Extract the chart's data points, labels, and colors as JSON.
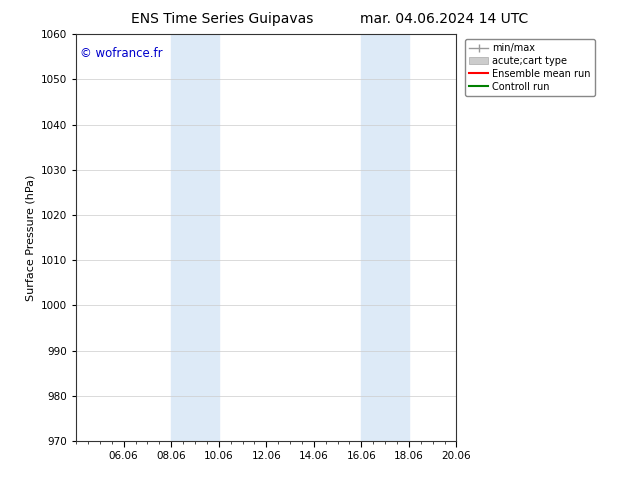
{
  "title_left": "ENS Time Series Guipavas",
  "title_right": "mar. 04.06.2024 14 UTC",
  "ylabel": "Surface Pressure (hPa)",
  "ylim": [
    970,
    1060
  ],
  "yticks": [
    970,
    980,
    990,
    1000,
    1010,
    1020,
    1030,
    1040,
    1050,
    1060
  ],
  "xtick_labels": [
    "06.06",
    "08.06",
    "10.06",
    "12.06",
    "14.06",
    "16.06",
    "18.06",
    "20.06"
  ],
  "xtick_positions": [
    2,
    4,
    6,
    8,
    10,
    12,
    14,
    16
  ],
  "shaded_bands": [
    {
      "x_start": 4,
      "x_end": 6
    },
    {
      "x_start": 12,
      "x_end": 14
    }
  ],
  "shaded_color": "#ddeaf7",
  "watermark_text": "© wofrance.fr",
  "watermark_color": "#0000cc",
  "bg_color": "#ffffff",
  "grid_color": "#cccccc",
  "title_fontsize": 10,
  "label_fontsize": 8,
  "tick_fontsize": 7.5,
  "legend_fontsize": 7
}
